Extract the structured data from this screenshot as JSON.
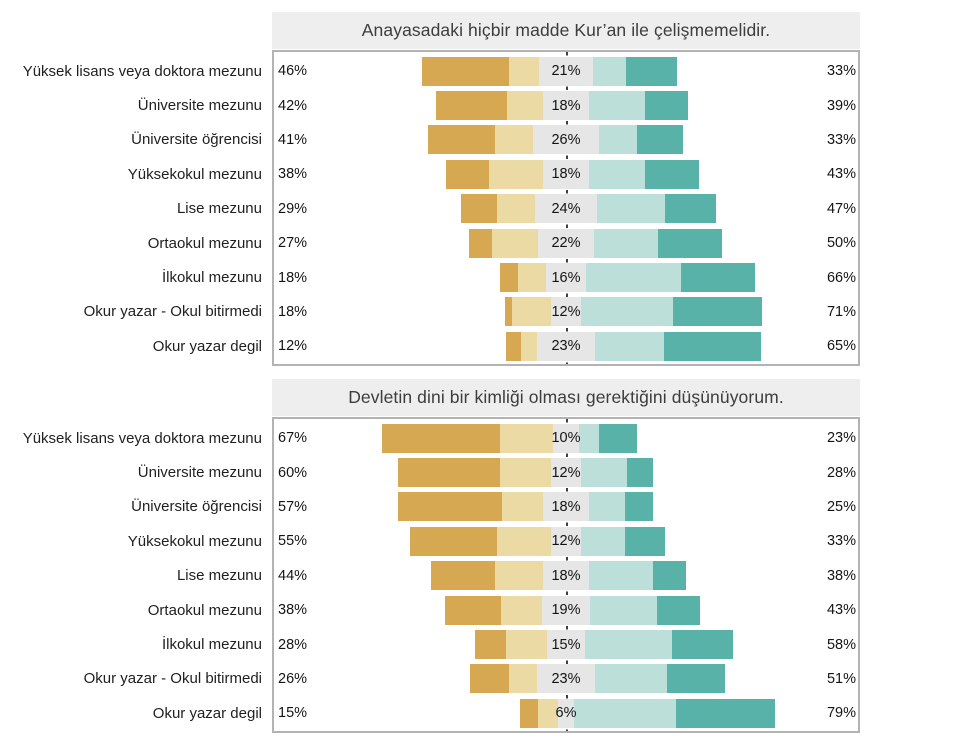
{
  "style": {
    "title_background": "#EEEEEE",
    "panel_border": "#B3B3B3",
    "center_line_color": "#3F3F3F",
    "label_text_color": "#1F1F1F"
  },
  "chart_data": [
    {
      "type": "bar",
      "subtype": "diverging_stacked_likert",
      "title": "Anayasadaki hiçbir madde Kur’an ile çelişmemelidir.",
      "legend_position": "none",
      "grid": false,
      "center_reference": "dotted vertical line at neutral midpoint",
      "categories": [
        "Yüksek lisans veya doktora mezunu",
        "Üniversite mezunu",
        "Üniversite öğrencisi",
        "Yüksekokul mezunu",
        "Lise mezunu",
        "Ortaokul mezunu",
        "İlkokul mezunu",
        "Okur yazar - Okul bitirmedi",
        "Okur yazar degil"
      ],
      "series": [
        {
          "name": "strongly_disagree",
          "color": "#D6A852",
          "values": [
            34,
            28,
            26,
            17,
            14,
            9,
            7,
            3,
            6
          ]
        },
        {
          "name": "disagree",
          "color": "#ECDAA4",
          "values": [
            12,
            14,
            15,
            21,
            15,
            18,
            11,
            15,
            6
          ]
        },
        {
          "name": "neutral",
          "color": "#E6E6E6",
          "values": [
            21,
            18,
            26,
            18,
            24,
            22,
            16,
            12,
            23
          ]
        },
        {
          "name": "agree",
          "color": "#BCDFD9",
          "values": [
            13,
            22,
            15,
            22,
            27,
            25,
            37,
            36,
            27
          ]
        },
        {
          "name": "strongly_agree",
          "color": "#59B2A7",
          "values": [
            20,
            17,
            18,
            21,
            20,
            25,
            29,
            35,
            38
          ]
        }
      ],
      "labels": {
        "left": [
          "46%",
          "42%",
          "41%",
          "38%",
          "29%",
          "27%",
          "18%",
          "18%",
          "12%"
        ],
        "middle": [
          "21%",
          "18%",
          "26%",
          "18%",
          "24%",
          "22%",
          "16%",
          "12%",
          "23%"
        ],
        "right": [
          "33%",
          "39%",
          "33%",
          "43%",
          "47%",
          "50%",
          "66%",
          "71%",
          "65%"
        ]
      }
    },
    {
      "type": "bar",
      "subtype": "diverging_stacked_likert",
      "title": "Devletin dini bir kimliği olması gerektiğini düşünüyorum.",
      "legend_position": "none",
      "grid": false,
      "center_reference": "dotted vertical line at neutral midpoint",
      "categories": [
        "Yüksek lisans veya doktora mezunu",
        "Üniversite mezunu",
        "Üniversite öğrencisi",
        "Yüksekokul mezunu",
        "Lise mezunu",
        "Ortaokul mezunu",
        "İlkokul mezunu",
        "Okur yazar - Okul bitirmedi",
        "Okur yazar degil"
      ],
      "series": [
        {
          "name": "strongly_disagree",
          "color": "#D6A852",
          "values": [
            46,
            40,
            41,
            34,
            25,
            22,
            12,
            15,
            7
          ]
        },
        {
          "name": "disagree",
          "color": "#ECDAA4",
          "values": [
            21,
            20,
            16,
            21,
            19,
            16,
            16,
            11,
            8
          ]
        },
        {
          "name": "neutral",
          "color": "#E6E6E6",
          "values": [
            10,
            12,
            18,
            12,
            18,
            19,
            15,
            23,
            6
          ]
        },
        {
          "name": "agree",
          "color": "#BCDFD9",
          "values": [
            8,
            18,
            14,
            17,
            25,
            26,
            34,
            28,
            40
          ]
        },
        {
          "name": "strongly_agree",
          "color": "#59B2A7",
          "values": [
            15,
            10,
            11,
            16,
            13,
            17,
            24,
            23,
            39
          ]
        }
      ],
      "labels": {
        "left": [
          "67%",
          "60%",
          "57%",
          "55%",
          "44%",
          "38%",
          "28%",
          "26%",
          "15%"
        ],
        "middle": [
          "10%",
          "12%",
          "18%",
          "12%",
          "18%",
          "19%",
          "15%",
          "23%",
          "6%"
        ],
        "right": [
          "23%",
          "28%",
          "25%",
          "33%",
          "38%",
          "43%",
          "58%",
          "51%",
          "79%"
        ]
      }
    }
  ]
}
